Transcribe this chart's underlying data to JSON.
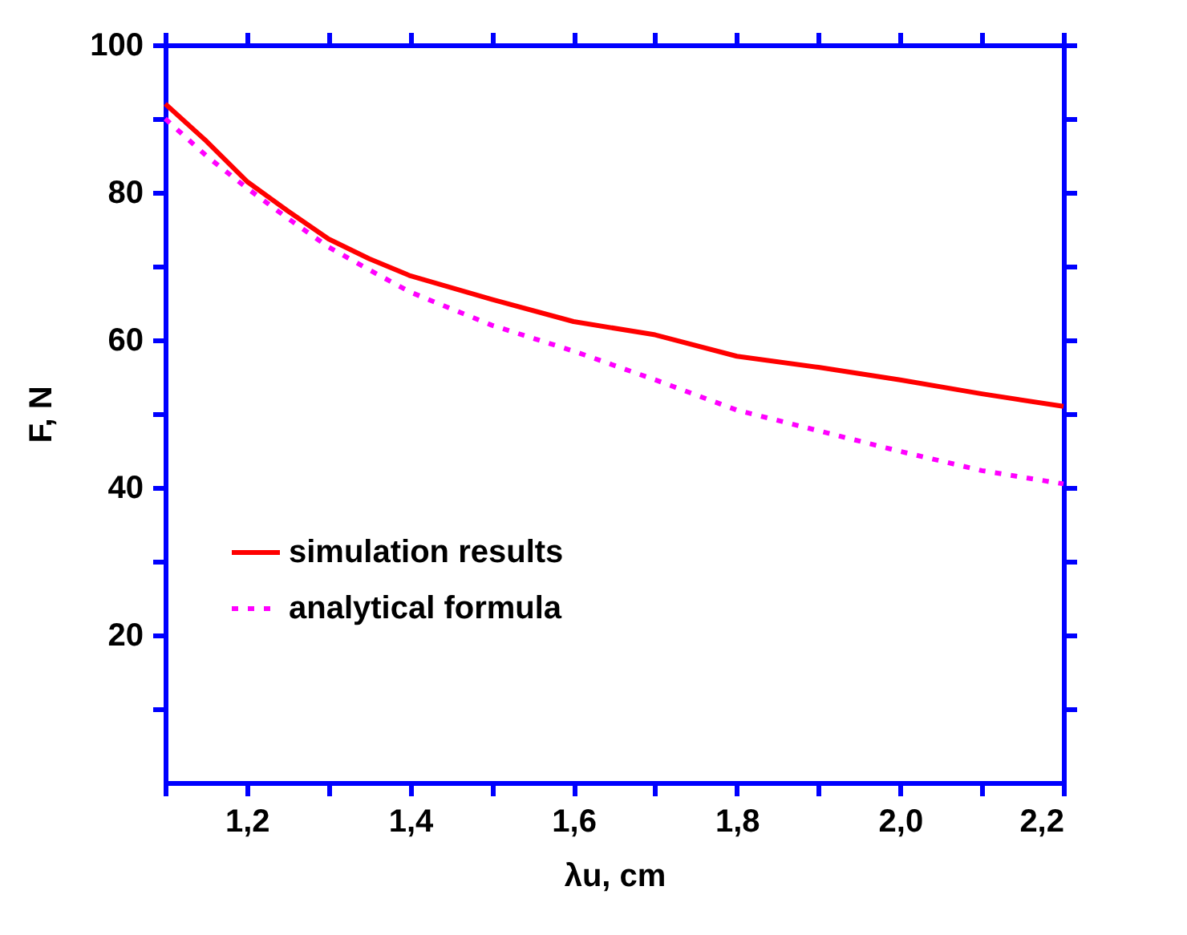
{
  "chart_data": {
    "type": "line",
    "xlabel": "λu, cm",
    "ylabel": "F, N",
    "x": [
      1.1,
      1.15,
      1.2,
      1.25,
      1.3,
      1.35,
      1.4,
      1.5,
      1.6,
      1.7,
      1.8,
      1.9,
      2.0,
      2.1,
      2.2
    ],
    "series": [
      {
        "name": "simulation results",
        "color": "#ff0000",
        "line_style": "solid",
        "values": [
          92,
          87,
          81.5,
          77.5,
          73.7,
          71,
          68.7,
          65.5,
          62.5,
          60.7,
          57.8,
          56.3,
          54.6,
          52.7,
          51
        ]
      },
      {
        "name": "analytical  formula",
        "color": "#ff00ff",
        "line_style": "dotted",
        "values": [
          90,
          85,
          80.6,
          76.5,
          72.6,
          69.5,
          66.5,
          62,
          58.5,
          54.6,
          50.5,
          47.7,
          44.9,
          42.3,
          40.5
        ]
      }
    ],
    "xlim": [
      1.1,
      2.2
    ],
    "ylim": [
      0,
      100
    ],
    "xticks": [
      {
        "value": 1.1,
        "label": null
      },
      {
        "value": 1.2,
        "label": "1,2"
      },
      {
        "value": 1.3,
        "label": null
      },
      {
        "value": 1.4,
        "label": "1,4"
      },
      {
        "value": 1.5,
        "label": null
      },
      {
        "value": 1.6,
        "label": "1,6"
      },
      {
        "value": 1.7,
        "label": null
      },
      {
        "value": 1.8,
        "label": "1,8"
      },
      {
        "value": 1.9,
        "label": null
      },
      {
        "value": 2.0,
        "label": "2,0"
      },
      {
        "value": 2.1,
        "label": null
      },
      {
        "value": 2.2,
        "label": "2,2"
      }
    ],
    "yticks": [
      {
        "value": 10,
        "label": null
      },
      20,
      {
        "value": 30,
        "label": null
      },
      40,
      {
        "value": 50,
        "label": null
      },
      60,
      {
        "value": 70,
        "label": null
      },
      80,
      {
        "value": 90,
        "label": null
      },
      100
    ],
    "grid": false,
    "legend": "bottom left",
    "marker": "none"
  }
}
